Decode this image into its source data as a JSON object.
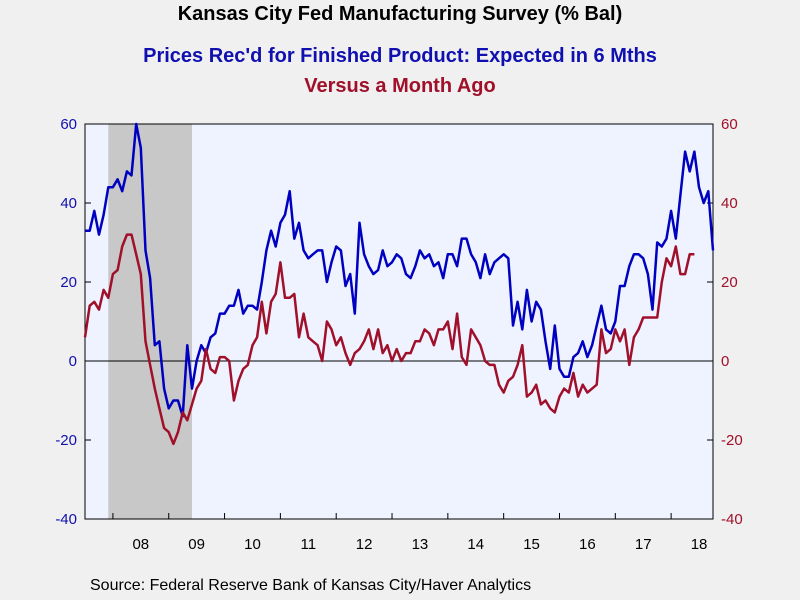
{
  "title": "Kansas City Fed Manufacturing Survey (% Bal)",
  "subtitle1": "Prices Rec'd for Finished Product: Expected in 6 Mths",
  "subtitle2": "Versus a Month Ago",
  "source": "Source:  Federal Reserve Bank of Kansas City/Haver Analytics",
  "colors": {
    "expected": "#0000c0",
    "current": "#a0102a",
    "recession": "#c8c8c8",
    "plot_bg": "#eef3ff"
  },
  "chart_data": {
    "type": "line",
    "title": "Kansas City Fed Manufacturing Survey (% Bal)",
    "xlabel": "",
    "ylabel": "",
    "ylim": [
      -40,
      60
    ],
    "yticks": [
      -40,
      -20,
      0,
      20,
      40,
      60
    ],
    "x_start": 2007.5,
    "x_end": 2018.75,
    "x_step_months": 1,
    "x_tick_labels": [
      "08",
      "09",
      "10",
      "11",
      "12",
      "13",
      "14",
      "15",
      "16",
      "17",
      "18"
    ],
    "recession": [
      2007.917,
      2009.417
    ],
    "series": [
      {
        "name": "Prices Rec'd for Finished Product: Expected in 6 Mths",
        "axis": "left",
        "values": [
          33,
          33,
          38,
          32,
          37,
          44,
          44,
          46,
          43,
          48,
          47,
          60,
          54,
          28,
          21,
          4,
          5,
          -7,
          -12,
          -10,
          -10,
          -14,
          4,
          -7,
          0,
          4,
          2,
          6,
          7,
          12,
          12,
          14,
          14,
          18,
          12,
          14,
          14,
          13,
          20,
          28,
          33,
          29,
          35,
          37,
          43,
          31,
          35,
          28,
          26,
          27,
          28,
          28,
          20,
          25,
          29,
          28,
          19,
          22,
          12,
          35,
          27,
          24,
          22,
          23,
          28,
          24,
          25,
          27,
          26,
          22,
          21,
          24,
          28,
          26,
          27,
          24,
          25,
          21,
          27,
          27,
          24,
          31,
          31,
          27,
          25,
          21,
          27,
          22,
          25,
          26,
          27,
          26,
          9,
          15,
          8,
          18,
          10,
          15,
          13,
          5,
          -2,
          9,
          -2,
          -4,
          -4,
          1,
          2,
          5,
          1,
          4,
          9,
          14,
          8,
          7,
          10,
          19,
          19,
          24,
          27,
          27,
          26,
          22,
          13,
          30,
          29,
          31,
          38,
          31,
          42,
          53,
          48,
          53,
          44,
          40,
          43,
          28
        ]
      },
      {
        "name": "Versus a Month Ago",
        "axis": "right",
        "values": [
          6,
          14,
          15,
          13,
          18,
          16,
          22,
          23,
          29,
          32,
          32,
          27,
          22,
          5,
          -1,
          -7,
          -12,
          -17,
          -18,
          -21,
          -18,
          -13,
          -15,
          -11,
          -7,
          -5,
          3,
          -2,
          -3,
          1,
          1,
          0,
          -10,
          -5,
          -2,
          -1,
          4,
          6,
          15,
          7,
          15,
          17,
          25,
          16,
          16,
          17,
          6,
          12,
          6,
          5,
          4,
          0,
          10,
          8,
          4,
          6,
          2,
          -1,
          2,
          3,
          5,
          8,
          3,
          8,
          2,
          4,
          0,
          3,
          0,
          2,
          2,
          5,
          5,
          8,
          7,
          4,
          8,
          8,
          10,
          3,
          12,
          1,
          -1,
          8,
          6,
          4,
          0,
          -1,
          -1,
          -6,
          -8,
          -5,
          -4,
          -1,
          4,
          -9,
          -8,
          -6,
          -11,
          -10,
          -12,
          -13,
          -9,
          -7,
          -8,
          -3,
          -9,
          -6,
          -8,
          -7,
          -6,
          8,
          2,
          3,
          8,
          5,
          8,
          -1,
          6,
          8,
          11,
          11,
          11,
          11,
          20,
          26,
          24,
          29,
          22,
          22,
          27,
          27
        ]
      }
    ],
    "legend": "none",
    "zero_line": true
  }
}
